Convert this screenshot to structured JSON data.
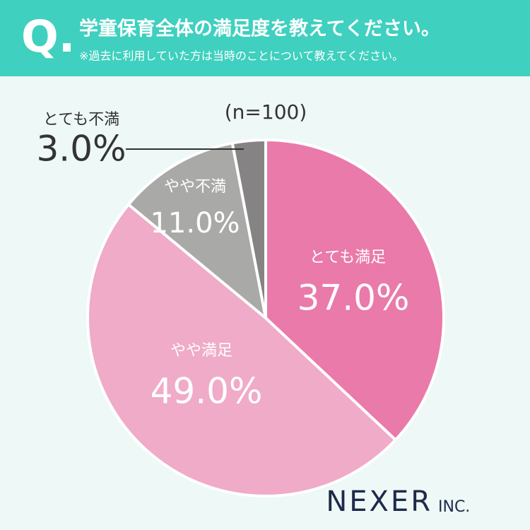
{
  "header": {
    "mark": "Q.",
    "title": "学童保育全体の満足度を教えてください。",
    "subtitle": "※過去に利用していた方は当時のことについて教えてください。"
  },
  "chart_data": {
    "type": "pie",
    "note": "(n=100)",
    "categories": [
      "とても満足",
      "やや満足",
      "やや不満",
      "とても不満"
    ],
    "values": [
      37,
      49,
      11,
      3
    ],
    "value_labels": [
      "37.0%",
      "49.0%",
      "11.0%",
      "3.0%"
    ],
    "colors": [
      "#e97aa9",
      "#efabc7",
      "#a9a9a7",
      "#858384"
    ]
  },
  "footer": {
    "logo": "NEXER",
    "logo_suffix": "INC."
  }
}
